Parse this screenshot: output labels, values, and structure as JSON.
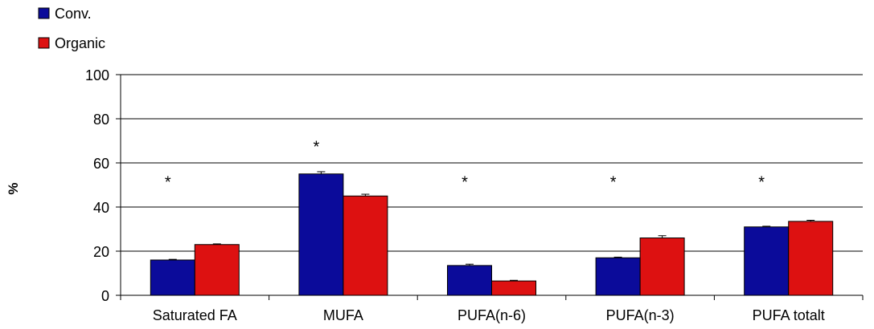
{
  "chart_data": {
    "type": "bar",
    "title": "",
    "xlabel": "",
    "ylabel": "%",
    "ylim": [
      0,
      100
    ],
    "yticks": [
      0,
      20,
      40,
      60,
      80,
      100
    ],
    "grid": true,
    "legend_position": "top-left",
    "categories": [
      "Saturated FA",
      "MUFA",
      "PUFA(n-6)",
      "PUFA(n-3)",
      "PUFA totalt"
    ],
    "series": [
      {
        "name": "Conv.",
        "color": "#0b0b9a",
        "values": [
          16,
          55,
          13.5,
          17,
          31
        ],
        "errors": [
          0.3,
          1.0,
          0.6,
          0.3,
          0.3
        ]
      },
      {
        "name": "Organic",
        "color": "#dd1111",
        "values": [
          23,
          45,
          6.5,
          26,
          33.5
        ],
        "errors": [
          0.3,
          0.8,
          0.3,
          1.0,
          0.5
        ]
      }
    ],
    "annotations": [
      {
        "text": "*",
        "category": "Saturated FA",
        "y": 54
      },
      {
        "text": "*",
        "category": "MUFA",
        "y": 70
      },
      {
        "text": "*",
        "category": "PUFA(n-6)",
        "y": 54
      },
      {
        "text": "*",
        "category": "PUFA(n-3)",
        "y": 54
      },
      {
        "text": "*",
        "category": "PUFA totalt",
        "y": 54
      }
    ]
  }
}
